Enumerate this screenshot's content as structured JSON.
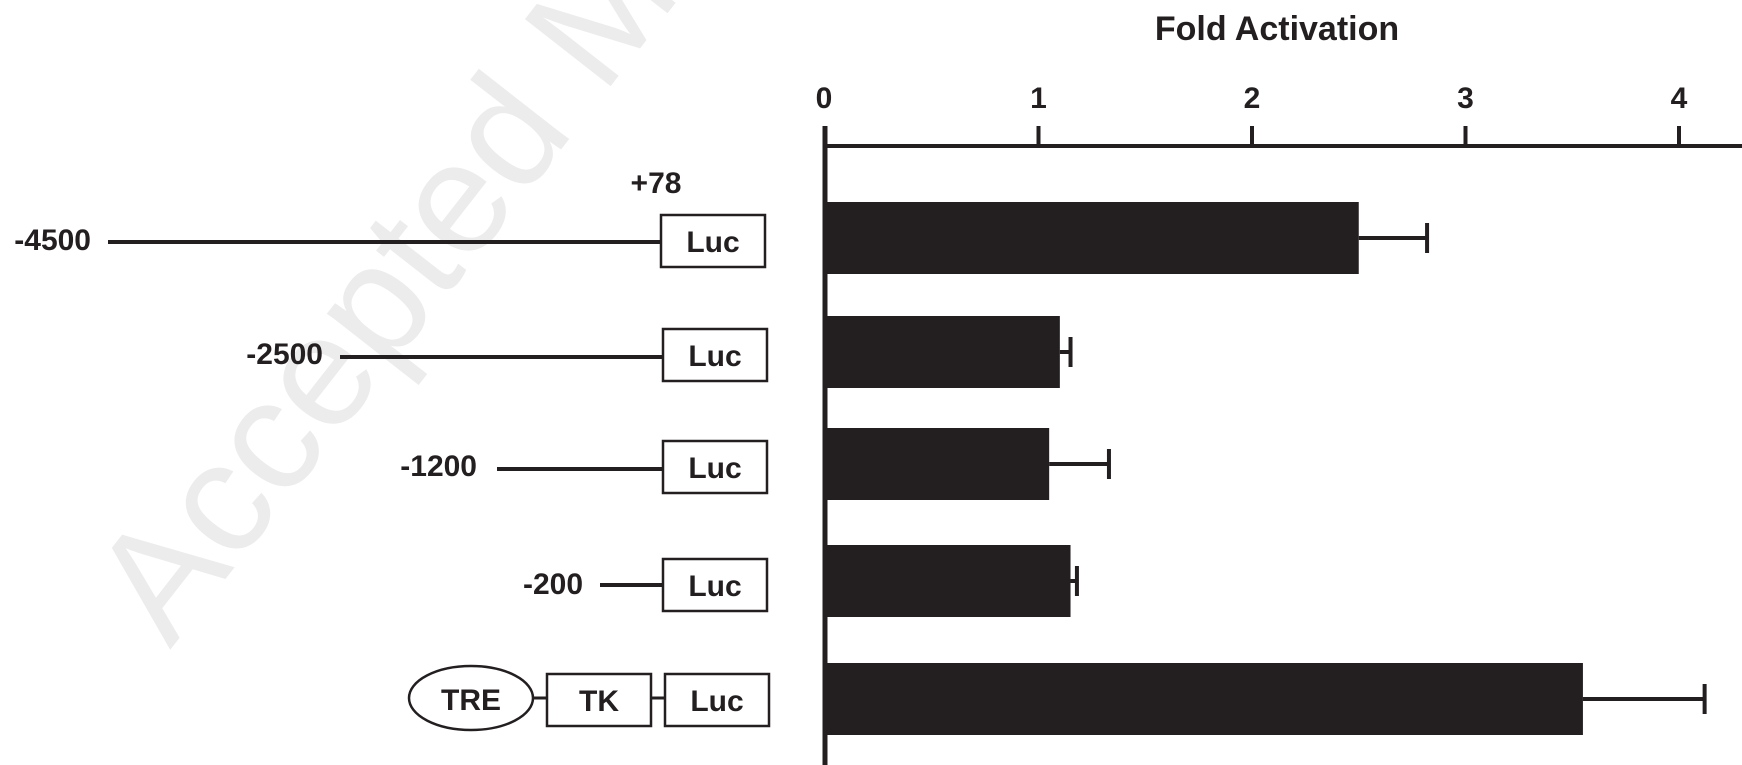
{
  "watermark": "Accepted Ma",
  "chart_data": {
    "type": "bar",
    "orientation": "horizontal",
    "title": "Fold Activation",
    "xlabel": "",
    "ylabel": "",
    "xlim": [
      0,
      4.2
    ],
    "xticks": [
      "0",
      "1",
      "2",
      "3",
      "4"
    ],
    "xaxis_position": "top",
    "grid": false,
    "bar_color": "#231f20",
    "categories": [
      "-4500",
      "-2500",
      "-1200",
      "-200",
      "TRE-TK-Luc"
    ],
    "values": [
      2.5,
      1.1,
      1.05,
      1.15,
      3.55
    ],
    "error_upper": [
      2.82,
      1.15,
      1.33,
      1.18,
      4.12
    ]
  },
  "constructs": [
    {
      "start_label": "-4500",
      "top_label": "+78",
      "reporter": "Luc"
    },
    {
      "start_label": "-2500",
      "reporter": "Luc"
    },
    {
      "start_label": "-1200",
      "reporter": "Luc"
    },
    {
      "start_label": "-200",
      "reporter": "Luc"
    },
    {
      "elements": [
        "TRE",
        "TK"
      ],
      "reporter": "Luc"
    }
  ]
}
